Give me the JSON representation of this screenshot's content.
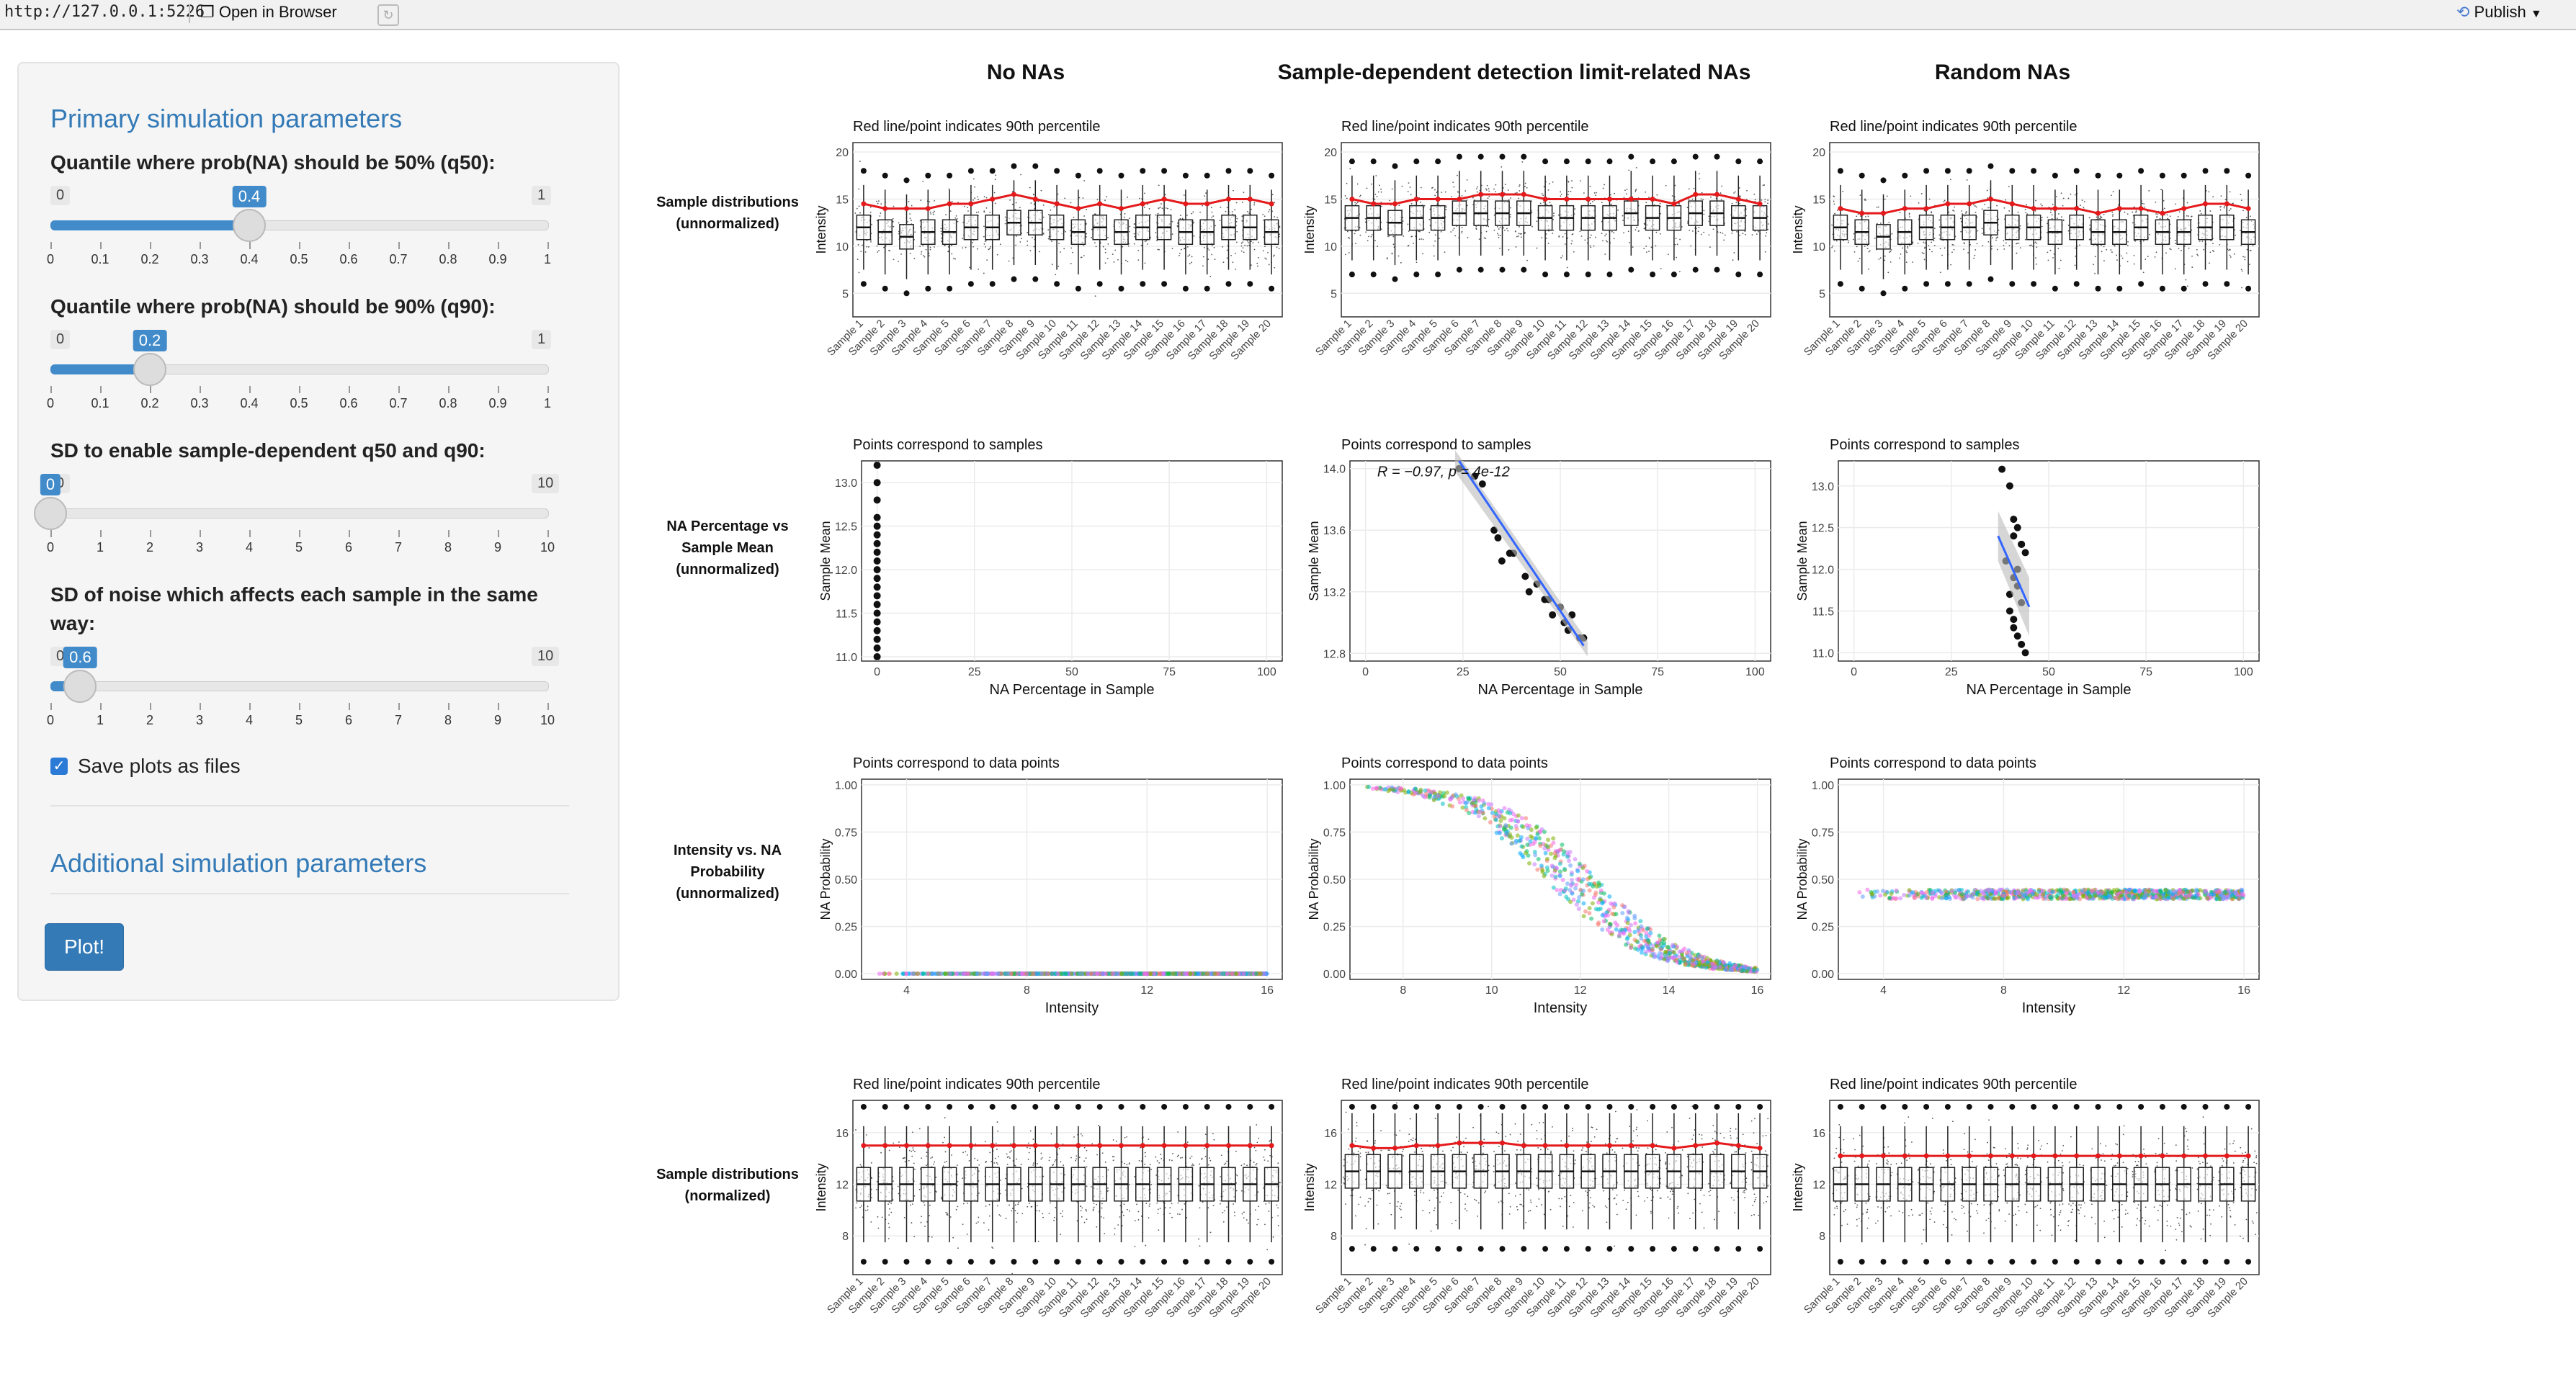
{
  "topbar": {
    "url": "http://127.0.0.1:5226",
    "open_in_browser": "Open in Browser",
    "publish": "Publish"
  },
  "sidebar": {
    "primary_heading": "Primary simulation parameters",
    "additional_heading": "Additional simulation parameters",
    "sliders": [
      {
        "label": "Quantile where prob(NA) should be 50% (q50):",
        "min": "0",
        "max": "1",
        "value": "0.4",
        "value_fraction": 0.4,
        "ticks": [
          "0",
          "0.1",
          "0.2",
          "0.3",
          "0.4",
          "0.5",
          "0.6",
          "0.7",
          "0.8",
          "0.9",
          "1"
        ]
      },
      {
        "label": "Quantile where prob(NA) should be 90% (q90):",
        "min": "0",
        "max": "1",
        "value": "0.2",
        "value_fraction": 0.2,
        "ticks": [
          "0",
          "0.1",
          "0.2",
          "0.3",
          "0.4",
          "0.5",
          "0.6",
          "0.7",
          "0.8",
          "0.9",
          "1"
        ]
      },
      {
        "label": "SD to enable sample-dependent q50 and q90:",
        "min": "0",
        "max": "10",
        "value": "0",
        "value_fraction": 0.0,
        "ticks": [
          "0",
          "1",
          "2",
          "3",
          "4",
          "5",
          "6",
          "7",
          "8",
          "9",
          "10"
        ]
      },
      {
        "label": "SD of noise which affects each sample in the same way:",
        "min": "0",
        "max": "10",
        "value": "0.6",
        "value_fraction": 0.06,
        "ticks": [
          "0",
          "1",
          "2",
          "3",
          "4",
          "5",
          "6",
          "7",
          "8",
          "9",
          "10"
        ]
      }
    ],
    "save_plots_label": "Save plots as files",
    "save_plots_checked": true,
    "plot_button": "Plot!"
  },
  "main": {
    "column_titles": [
      "No NAs",
      "Sample-dependent detection limit-related NAs",
      "Random NAs"
    ],
    "row_labels": [
      "Sample distributions (unnormalized)",
      "NA Percentage vs Sample Mean (unnormalized)",
      "Intensity vs. NA Probability (unnormalized)",
      "Sample distributions (normalized)"
    ],
    "samples": [
      "Sample 1",
      "Sample 2",
      "Sample 3",
      "Sample 4",
      "Sample 5",
      "Sample 6",
      "Sample 7",
      "Sample 8",
      "Sample 9",
      "Sample 10",
      "Sample 11",
      "Sample 12",
      "Sample 13",
      "Sample 14",
      "Sample 15",
      "Sample 16",
      "Sample 17",
      "Sample 18",
      "Sample 19",
      "Sample 20"
    ],
    "subtitles": {
      "box": "Red line/point indicates 90th percentile",
      "scatter_samples": "Points correspond to samples",
      "scatter_points": "Points correspond to data points"
    },
    "correlation_label": "R = −0.97, p = 4e-12",
    "colors": {
      "accent": "#337ab7",
      "red_line": "#e41a1c",
      "fit_line": "#3366ff"
    }
  },
  "chart_data": [
    {
      "type": "box",
      "panel": "r1c1",
      "title": "Red line/point indicates 90th percentile",
      "ylabel": "Intensity",
      "yticks": [
        5,
        10,
        15,
        20
      ],
      "ylim": [
        2.5,
        21
      ],
      "medians": [
        12,
        11.5,
        11,
        11.5,
        11.5,
        12,
        12,
        12.5,
        12.5,
        12,
        11.5,
        12,
        11.5,
        12,
        12,
        11.5,
        11.5,
        12,
        12,
        11.5
      ],
      "p90": [
        14.5,
        14,
        14,
        14,
        14.5,
        14.5,
        15,
        15.5,
        15,
        14.5,
        14,
        14.5,
        14,
        14.5,
        15,
        14.5,
        14.5,
        15,
        15,
        14.5
      ]
    },
    {
      "type": "box",
      "panel": "r1c2",
      "title": "Red line/point indicates 90th percentile",
      "ylabel": "Intensity",
      "yticks": [
        5,
        10,
        15,
        20
      ],
      "ylim": [
        2.5,
        21
      ],
      "medians": [
        13,
        13,
        12.5,
        13,
        13,
        13.5,
        13.5,
        13.5,
        13.5,
        13,
        13,
        13,
        13,
        13.5,
        13,
        13,
        13.5,
        13.5,
        13,
        13
      ],
      "p90": [
        15,
        14.5,
        14.5,
        15,
        15,
        15,
        15.5,
        15.5,
        15.5,
        15,
        15,
        15,
        15,
        15,
        15,
        14.5,
        15.5,
        15.5,
        15,
        14.5
      ]
    },
    {
      "type": "box",
      "panel": "r1c3",
      "title": "Red line/point indicates 90th percentile",
      "ylabel": "Intensity",
      "yticks": [
        5,
        10,
        15,
        20
      ],
      "ylim": [
        2.5,
        21
      ],
      "medians": [
        12,
        11.5,
        11,
        11.5,
        12,
        12,
        12,
        12.5,
        12,
        12,
        11.5,
        12,
        11.5,
        11.5,
        12,
        11.5,
        11.5,
        12,
        12,
        11.5
      ],
      "p90": [
        14,
        13.5,
        13.5,
        14,
        14,
        14.5,
        14.5,
        15,
        14.5,
        14,
        14,
        14,
        13.5,
        14,
        14,
        13.5,
        14,
        14.5,
        14.5,
        14
      ]
    },
    {
      "type": "scatter",
      "panel": "r2c1",
      "title": "Points correspond to samples",
      "xlabel": "NA Percentage in Sample",
      "ylabel": "Sample Mean",
      "xticks": [
        0,
        25,
        50,
        75,
        100
      ],
      "yticks": [
        11.0,
        11.5,
        12.0,
        12.5,
        13.0
      ],
      "xlim": [
        -4,
        104
      ],
      "ylim": [
        10.95,
        13.25
      ],
      "x": [
        0,
        0,
        0,
        0,
        0,
        0,
        0,
        0,
        0,
        0,
        0,
        0,
        0,
        0,
        0,
        0,
        0,
        0,
        0,
        0
      ],
      "y": [
        13.2,
        13.0,
        12.6,
        12.5,
        12.3,
        12.2,
        12.1,
        11.9,
        11.8,
        11.6,
        11.5,
        11.4,
        11.2,
        11.1,
        11.0,
        12.4,
        12.0,
        11.7,
        12.8,
        11.3
      ]
    },
    {
      "type": "scatter",
      "panel": "r2c2",
      "title": "Points correspond to samples",
      "xlabel": "NA Percentage in Sample",
      "ylabel": "Sample Mean",
      "xticks": [
        0,
        25,
        50,
        75,
        100
      ],
      "yticks": [
        12.8,
        13.2,
        13.6,
        14.0
      ],
      "xlim": [
        -4,
        104
      ],
      "ylim": [
        12.75,
        14.05
      ],
      "x": [
        24,
        28,
        30,
        33,
        34,
        35,
        37,
        38,
        41,
        42,
        44,
        46,
        47,
        48,
        50,
        51,
        52,
        53,
        55,
        56
      ],
      "y": [
        14.0,
        13.95,
        13.9,
        13.6,
        13.55,
        13.4,
        13.45,
        13.45,
        13.3,
        13.2,
        13.25,
        13.15,
        13.15,
        13.05,
        13.1,
        13.0,
        12.95,
        13.05,
        12.9,
        12.9
      ]
    },
    {
      "type": "scatter",
      "panel": "r2c3",
      "title": "Points correspond to samples",
      "xlabel": "NA Percentage in Sample",
      "ylabel": "Sample Mean",
      "xticks": [
        0,
        25,
        50,
        75,
        100
      ],
      "yticks": [
        11.0,
        11.5,
        12.0,
        12.5,
        13.0
      ],
      "xlim": [
        -4,
        104
      ],
      "ylim": [
        10.9,
        13.3
      ],
      "x": [
        38,
        40,
        41,
        42,
        43,
        44,
        39,
        41,
        42,
        43,
        40,
        41,
        42,
        43,
        44,
        41,
        42,
        40,
        43,
        41
      ],
      "y": [
        13.2,
        13.0,
        12.6,
        12.5,
        12.3,
        12.2,
        12.1,
        11.9,
        11.8,
        11.6,
        11.5,
        11.4,
        11.2,
        11.1,
        11.0,
        12.4,
        12.0,
        11.7,
        12.3,
        11.3
      ]
    },
    {
      "type": "scatter",
      "panel": "r3c1",
      "title": "Points correspond to data points",
      "xlabel": "Intensity",
      "ylabel": "NA Probability",
      "xticks": [
        4,
        8,
        12,
        16
      ],
      "yticks": [
        0.0,
        0.25,
        0.5,
        0.75,
        1.0
      ],
      "xlim": [
        2.5,
        16.5
      ],
      "ylim": [
        -0.03,
        1.03
      ],
      "curve": "flat0",
      "x_from": 3,
      "x_to": 16
    },
    {
      "type": "scatter",
      "panel": "r3c2",
      "title": "Points correspond to data points",
      "xlabel": "Intensity",
      "ylabel": "NA Probability",
      "xticks": [
        8,
        10,
        12,
        14,
        16
      ],
      "yticks": [
        0.0,
        0.25,
        0.5,
        0.75,
        1.0
      ],
      "xlim": [
        6.8,
        16.3
      ],
      "ylim": [
        -0.03,
        1.03
      ],
      "curve": "sigmoid",
      "x_from": 7,
      "x_to": 16
    },
    {
      "type": "scatter",
      "panel": "r3c3",
      "title": "Points correspond to data points",
      "xlabel": "Intensity",
      "ylabel": "NA Probability",
      "xticks": [
        4,
        8,
        12,
        16
      ],
      "yticks": [
        0.0,
        0.25,
        0.5,
        0.75,
        1.0
      ],
      "xlim": [
        2.5,
        16.5
      ],
      "ylim": [
        -0.03,
        1.03
      ],
      "curve": "flat42",
      "x_from": 3,
      "x_to": 16
    },
    {
      "type": "box",
      "panel": "r4c1",
      "title": "Red line/point indicates 90th percentile",
      "ylabel": "Intensity",
      "yticks": [
        8,
        12,
        16
      ],
      "ylim": [
        5,
        18.5
      ],
      "medians": [
        12,
        12,
        12,
        12,
        12,
        12,
        12,
        12,
        12,
        12,
        12,
        12,
        12,
        12,
        12,
        12,
        12,
        12,
        12,
        12
      ],
      "p90": [
        15,
        15,
        15,
        15,
        15,
        15,
        15,
        15,
        15,
        15,
        15,
        15,
        15,
        15,
        15,
        15,
        15,
        15,
        15,
        15
      ]
    },
    {
      "type": "box",
      "panel": "r4c2",
      "title": "Red line/point indicates 90th percentile",
      "ylabel": "Intensity",
      "yticks": [
        8,
        12,
        16
      ],
      "ylim": [
        5,
        18.5
      ],
      "medians": [
        13,
        13,
        13,
        13,
        13,
        13,
        13,
        13,
        13,
        13,
        13,
        13,
        13,
        13,
        13,
        13,
        13,
        13,
        13,
        13
      ],
      "p90": [
        15,
        14.8,
        14.8,
        15,
        15,
        15.2,
        15.2,
        15.2,
        15,
        15,
        15,
        15,
        15,
        15,
        15,
        14.8,
        15,
        15.2,
        15,
        14.8
      ]
    },
    {
      "type": "box",
      "panel": "r4c3",
      "title": "Red line/point indicates 90th percentile",
      "ylabel": "Intensity",
      "yticks": [
        8,
        12,
        16
      ],
      "ylim": [
        5,
        18.5
      ],
      "medians": [
        12,
        12,
        12,
        12,
        12,
        12,
        12,
        12,
        12,
        12,
        12,
        12,
        12,
        12,
        12,
        12,
        12,
        12,
        12,
        12
      ],
      "p90": [
        14.2,
        14.2,
        14.2,
        14.2,
        14.2,
        14.2,
        14.2,
        14.2,
        14.2,
        14.2,
        14.2,
        14.2,
        14.2,
        14.2,
        14.2,
        14.2,
        14.2,
        14.2,
        14.2,
        14.2
      ]
    }
  ]
}
